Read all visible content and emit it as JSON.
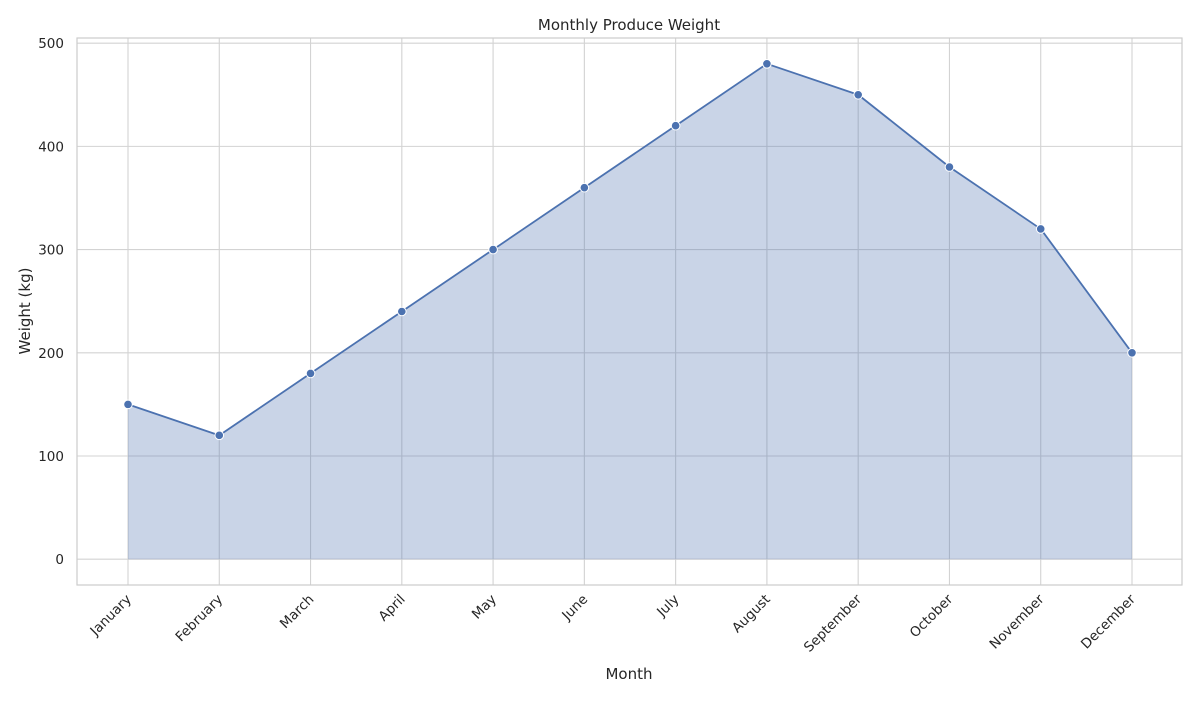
{
  "chart_data": {
    "type": "area",
    "title": "Monthly Produce Weight",
    "xlabel": "Month",
    "ylabel": "Weight (kg)",
    "categories": [
      "January",
      "February",
      "March",
      "April",
      "May",
      "June",
      "July",
      "August",
      "September",
      "October",
      "November",
      "December"
    ],
    "series": [
      {
        "values": [
          150,
          120,
          180,
          240,
          300,
          360,
          420,
          480,
          450,
          380,
          320,
          200
        ]
      }
    ],
    "yticks": [
      0,
      100,
      200,
      300,
      400,
      500
    ],
    "ylim": [
      -25,
      505
    ],
    "grid": true,
    "legend": "none",
    "colors": {
      "line": "#4c72b0",
      "fill": "#c9d3e7",
      "grid": "#d3d3d3",
      "frame": "#cccccc",
      "text": "#262626"
    }
  }
}
